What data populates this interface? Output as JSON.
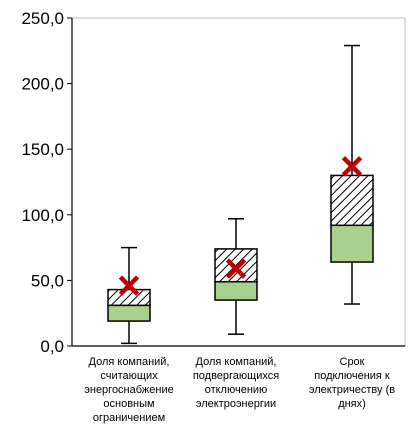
{
  "chart_data": {
    "type": "boxplot",
    "ylim": [
      0,
      250
    ],
    "y_ticks": [
      "0,0",
      "50,0",
      "100,0",
      "150,0",
      "200,0",
      "250,0"
    ],
    "grid": false,
    "categories": [
      {
        "label_lines": [
          "Доля компаний,",
          "считающих",
          "энергоснабжение",
          "основным",
          "ограничением"
        ],
        "min": 2,
        "q1": 19,
        "median": 31,
        "q3": 43,
        "max": 75,
        "mean": 46
      },
      {
        "label_lines": [
          "Доля компаний,",
          "подвергающихся",
          "отключению",
          "электроэнергии"
        ],
        "min": 9,
        "q1": 35,
        "median": 49,
        "q3": 74,
        "max": 97,
        "mean": 59
      },
      {
        "label_lines": [
          "Срок",
          "подключения к",
          "электричеству (в",
          "днях)"
        ],
        "min": 32,
        "q1": 64,
        "median": 92,
        "q3": 130,
        "max": 229,
        "mean": 137
      }
    ],
    "colors": {
      "lower_box": "#a9d18e",
      "upper_box_pattern": "hatched",
      "mean_marker": "#c00000",
      "axis": "#000000",
      "plot_border": "#bfbfbf"
    }
  }
}
